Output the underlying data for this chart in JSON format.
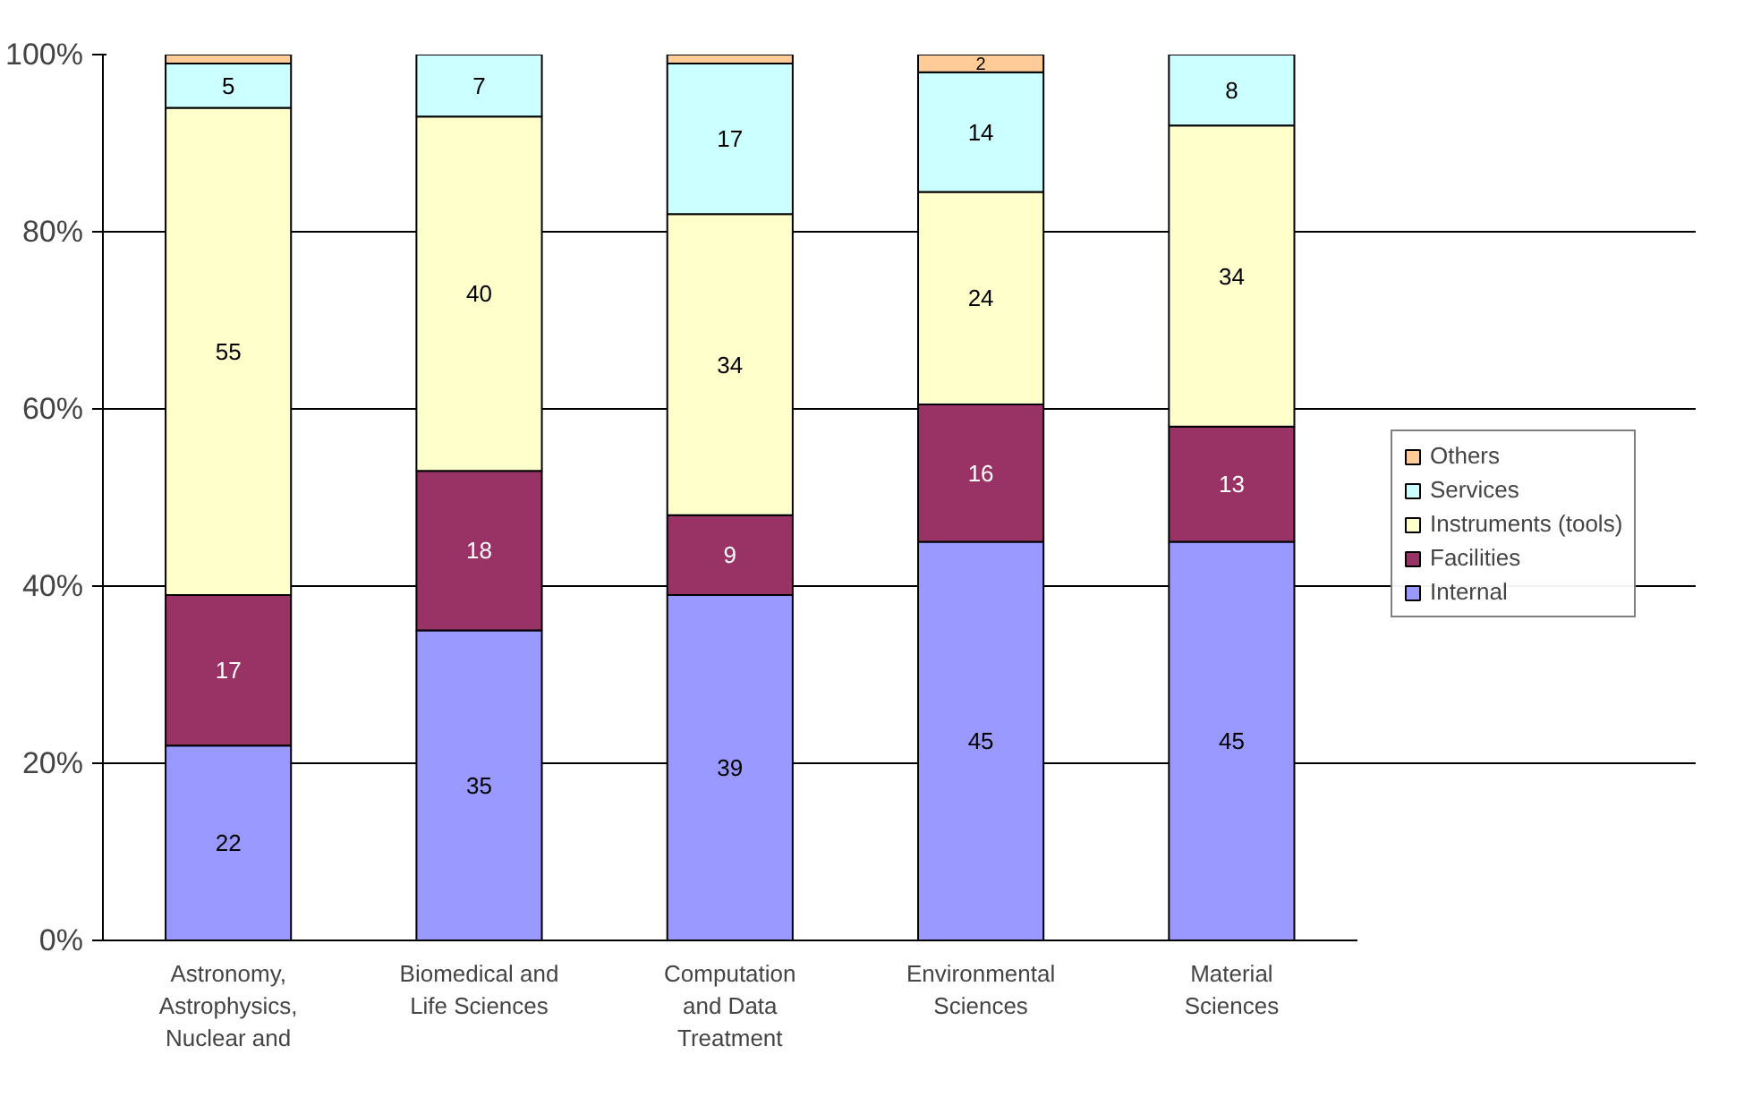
{
  "chart_data": {
    "type": "bar",
    "stacked": true,
    "categories": [
      "Astronomy,\nAstrophysics,\nNuclear and",
      "Biomedical and\nLife Sciences",
      "Computation\nand Data\nTreatment",
      "Environmental\nSciences",
      "Material\nSciences"
    ],
    "series": [
      {
        "name": "Internal",
        "color": "#9999ff",
        "values": [
          22,
          35,
          39,
          45,
          45
        ],
        "value_labels": [
          "22",
          "35",
          "39",
          "45",
          "45"
        ]
      },
      {
        "name": "Facilities",
        "color": "#993366",
        "values": [
          17,
          18,
          9,
          15.5,
          13
        ],
        "value_labels": [
          "17",
          "18",
          "9",
          "16",
          "13"
        ]
      },
      {
        "name": "Instruments (tools)",
        "color": "#ffffcc",
        "values": [
          55,
          40,
          34,
          24,
          34
        ],
        "value_labels": [
          "55",
          "40",
          "34",
          "24",
          "34"
        ]
      },
      {
        "name": "Services",
        "color": "#ccffff",
        "values": [
          5,
          7,
          17,
          13.5,
          8
        ],
        "value_labels": [
          "5",
          "7",
          "17",
          "14",
          "8"
        ]
      },
      {
        "name": "Others",
        "color": "#ffcc99",
        "values": [
          1,
          0,
          1,
          2,
          0
        ],
        "value_labels": [
          null,
          null,
          null,
          "2",
          null
        ]
      }
    ],
    "ylim": [
      0,
      100
    ],
    "yticks": [
      {
        "value": 0,
        "label": "0%"
      },
      {
        "value": 20,
        "label": "20%"
      },
      {
        "value": 40,
        "label": "40%"
      },
      {
        "value": 60,
        "label": "60%"
      },
      {
        "value": 80,
        "label": "80%"
      },
      {
        "value": 100,
        "label": "100%"
      }
    ],
    "grid": "y",
    "legend": "right"
  }
}
